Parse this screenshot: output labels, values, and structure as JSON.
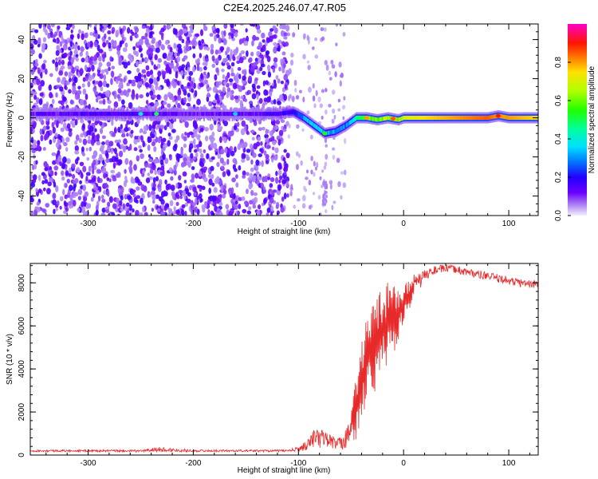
{
  "title": "C2E4.2025.246.07.47.R05",
  "chart_data": [
    {
      "type": "heatmap",
      "name": "spectrogram",
      "xlabel": "Height of straight line (km)",
      "ylabel": "Frequency (Hz)",
      "xlim": [
        -355,
        128
      ],
      "ylim": [
        -50,
        48
      ],
      "xticks": [
        -300,
        -200,
        -100,
        0,
        100
      ],
      "yticks": [
        -40,
        -20,
        0,
        20,
        40
      ],
      "colorbar": {
        "label": "Normalized spectral amplitude",
        "range": [
          0,
          1
        ],
        "ticks": [
          0.0,
          0.2,
          0.4,
          0.6,
          0.8
        ]
      },
      "ridge": {
        "x": [
          -355,
          -300,
          -250,
          -200,
          -150,
          -120,
          -105,
          -95,
          -85,
          -75,
          -65,
          -55,
          -45,
          -35,
          -25,
          -15,
          -5,
          0,
          20,
          50,
          80,
          90,
          100,
          128
        ],
        "frequency": [
          2,
          2,
          2,
          2,
          2,
          2,
          3,
          0,
          -4,
          -8,
          -7,
          -4,
          0,
          0,
          -1,
          0,
          -1,
          0,
          0,
          0,
          0,
          1,
          0,
          0
        ],
        "amplitude": [
          0.12,
          0.15,
          0.15,
          0.12,
          0.12,
          0.15,
          0.2,
          0.3,
          0.35,
          0.35,
          0.3,
          0.3,
          0.45,
          0.6,
          0.6,
          0.65,
          0.7,
          0.7,
          0.75,
          0.8,
          0.85,
          0.8,
          0.8,
          0.75
        ]
      },
      "noise_extent_x": [
        -355,
        -110
      ]
    },
    {
      "type": "line",
      "name": "snr",
      "xlabel": "Height of straight line (km)",
      "ylabel": "SNR (10 * v/v)",
      "xlim": [
        -355,
        128
      ],
      "ylim": [
        0,
        8900
      ],
      "xticks": [
        -300,
        -200,
        -100,
        0,
        100
      ],
      "yticks": [
        0,
        2000,
        4000,
        6000,
        8000
      ],
      "series": [
        {
          "name": "SNR",
          "color": "#e8292a",
          "x": [
            -355,
            -300,
            -250,
            -235,
            -200,
            -150,
            -110,
            -100,
            -90,
            -85,
            -80,
            -75,
            -70,
            -65,
            -60,
            -55,
            -50,
            -45,
            -40,
            -35,
            -30,
            -25,
            -20,
            -15,
            -10,
            -5,
            0,
            5,
            10,
            20,
            30,
            40,
            50,
            60,
            70,
            80,
            90,
            100,
            110,
            120,
            128
          ],
          "y": [
            150,
            150,
            140,
            300,
            150,
            150,
            150,
            250,
            500,
            1000,
            800,
            1100,
            800,
            600,
            500,
            900,
            1200,
            2500,
            4300,
            4500,
            5200,
            5500,
            6000,
            5800,
            6200,
            6600,
            7200,
            7500,
            7800,
            8300,
            8600,
            8700,
            8650,
            8500,
            8400,
            8300,
            8200,
            8100,
            8000,
            7950,
            7900
          ]
        }
      ],
      "envelope_low": [
        150,
        150,
        140,
        140,
        150,
        150,
        150,
        150,
        250,
        400,
        300,
        400,
        300,
        200,
        200,
        300,
        500,
        600,
        1500,
        2500,
        2800,
        3000,
        3700,
        4000,
        4500,
        5000,
        6300,
        6600,
        7200,
        8100,
        8400,
        8500,
        8450,
        8300,
        8200,
        8100,
        8000,
        7900,
        7800,
        7750,
        7700
      ],
      "envelope_high": [
        250,
        250,
        240,
        380,
        250,
        250,
        250,
        400,
        800,
        1350,
        1100,
        1300,
        1000,
        900,
        800,
        1500,
        2300,
        3600,
        5200,
        6600,
        7000,
        7500,
        7800,
        8100,
        8300,
        8000,
        7800,
        8200,
        8400,
        8600,
        8800,
        8850,
        8800,
        8700,
        8600,
        8500,
        8400,
        8300,
        8200,
        8150,
        8100
      ]
    }
  ]
}
